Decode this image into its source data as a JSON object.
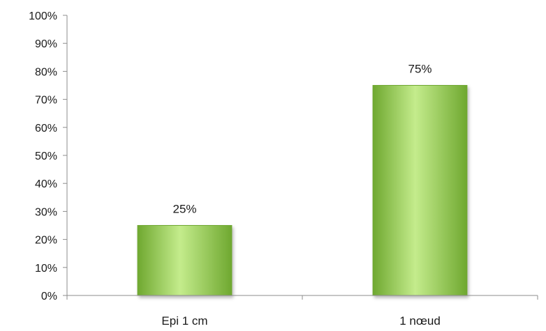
{
  "chart_data": {
    "type": "bar",
    "categories": [
      "Epi 1 cm",
      "1 nœud"
    ],
    "values": [
      25,
      75
    ],
    "data_labels": [
      "25%",
      "75%"
    ],
    "title": "",
    "xlabel": "",
    "ylabel": "",
    "ylim": [
      0,
      100
    ],
    "yticks": [
      0,
      10,
      20,
      30,
      40,
      50,
      60,
      70,
      80,
      90,
      100
    ],
    "ytick_labels": [
      "0%",
      "10%",
      "20%",
      "30%",
      "40%",
      "50%",
      "60%",
      "70%",
      "80%",
      "90%",
      "100%"
    ],
    "grid": false,
    "legend": "none",
    "colors": {
      "bar_fill": "#92d050",
      "bar_light": "#c4ec8c",
      "bar_dark": "#6fa830",
      "axis": "#8c8c8c"
    }
  }
}
